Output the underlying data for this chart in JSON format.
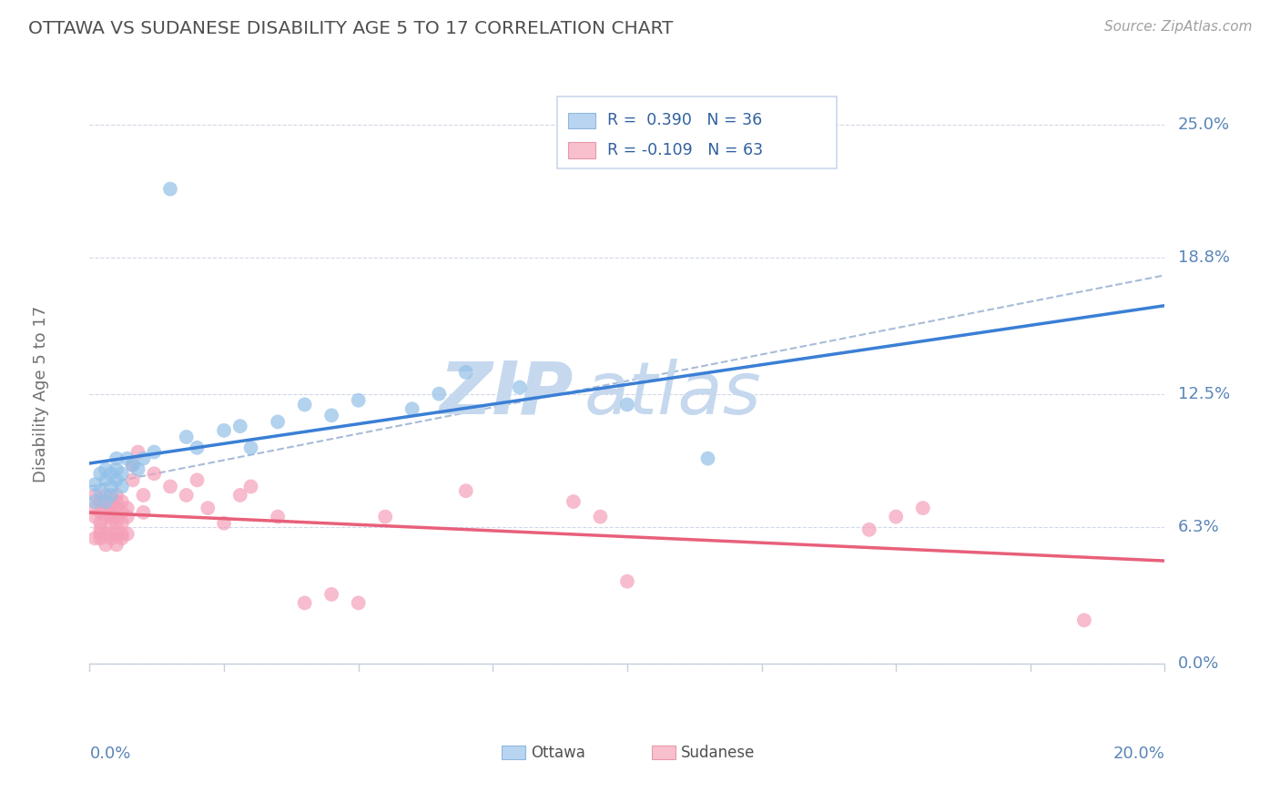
{
  "title": "OTTAWA VS SUDANESE DISABILITY AGE 5 TO 17 CORRELATION CHART",
  "source_text": "Source: ZipAtlas.com",
  "ylabel": "Disability Age 5 to 17",
  "xlim": [
    0.0,
    0.2
  ],
  "ylim": [
    -0.02,
    0.27
  ],
  "plot_ylim": [
    0.0,
    0.25
  ],
  "ytick_values": [
    0.0,
    0.063,
    0.125,
    0.188,
    0.25
  ],
  "ytick_labels": [
    "0.0%",
    "6.3%",
    "12.5%",
    "18.8%",
    "25.0%"
  ],
  "xtick_values": [
    0.0,
    0.2
  ],
  "xtick_labels": [
    "0.0%",
    "20.0%"
  ],
  "ottawa_R": 0.39,
  "ottawa_N": 36,
  "sudanese_R": -0.109,
  "sudanese_N": 63,
  "ottawa_color": "#92c0e8",
  "sudanese_color": "#f4a0b8",
  "ottawa_line_color": "#3a7fd5",
  "sudanese_line_color": "#e8607a",
  "dashed_line_color": "#a8bcd8",
  "grid_color": "#d0d8e8",
  "background_color": "#ffffff",
  "title_color": "#505050",
  "axis_label_color": "#5a85b8",
  "watermark_color": "#dce8f4",
  "legend_border_color": "#c8d8ec",
  "legend_box_color_ottawa": "#b8d4f0",
  "legend_box_color_sudanese": "#f8c0cc",
  "ottawa_x": [
    0.001,
    0.001,
    0.002,
    0.002,
    0.003,
    0.003,
    0.003,
    0.004,
    0.004,
    0.004,
    0.005,
    0.005,
    0.005,
    0.006,
    0.006,
    0.007,
    0.008,
    0.009,
    0.01,
    0.012,
    0.015,
    0.018,
    0.02,
    0.025,
    0.028,
    0.03,
    0.035,
    0.04,
    0.045,
    0.05,
    0.06,
    0.065,
    0.07,
    0.08,
    0.1,
    0.115
  ],
  "ottawa_y": [
    0.075,
    0.083,
    0.08,
    0.088,
    0.085,
    0.09,
    0.075,
    0.082,
    0.088,
    0.078,
    0.085,
    0.09,
    0.095,
    0.088,
    0.082,
    0.095,
    0.092,
    0.09,
    0.095,
    0.098,
    0.22,
    0.105,
    0.1,
    0.108,
    0.11,
    0.1,
    0.112,
    0.12,
    0.115,
    0.122,
    0.118,
    0.125,
    0.135,
    0.128,
    0.12,
    0.095
  ],
  "sudanese_x": [
    0.001,
    0.001,
    0.001,
    0.001,
    0.002,
    0.002,
    0.002,
    0.002,
    0.002,
    0.002,
    0.003,
    0.003,
    0.003,
    0.003,
    0.003,
    0.004,
    0.004,
    0.004,
    0.004,
    0.004,
    0.004,
    0.004,
    0.005,
    0.005,
    0.005,
    0.005,
    0.005,
    0.005,
    0.005,
    0.006,
    0.006,
    0.006,
    0.006,
    0.006,
    0.007,
    0.007,
    0.007,
    0.008,
    0.008,
    0.009,
    0.01,
    0.01,
    0.012,
    0.015,
    0.018,
    0.02,
    0.022,
    0.025,
    0.028,
    0.03,
    0.035,
    0.04,
    0.045,
    0.05,
    0.055,
    0.07,
    0.09,
    0.095,
    0.1,
    0.145,
    0.15,
    0.155,
    0.185
  ],
  "sudanese_y": [
    0.068,
    0.072,
    0.078,
    0.058,
    0.065,
    0.07,
    0.06,
    0.075,
    0.058,
    0.062,
    0.068,
    0.072,
    0.06,
    0.055,
    0.078,
    0.07,
    0.075,
    0.068,
    0.06,
    0.072,
    0.065,
    0.058,
    0.075,
    0.068,
    0.055,
    0.072,
    0.06,
    0.078,
    0.065,
    0.07,
    0.06,
    0.075,
    0.065,
    0.058,
    0.072,
    0.06,
    0.068,
    0.092,
    0.085,
    0.098,
    0.078,
    0.07,
    0.088,
    0.082,
    0.078,
    0.085,
    0.072,
    0.065,
    0.078,
    0.082,
    0.068,
    0.028,
    0.032,
    0.028,
    0.068,
    0.08,
    0.075,
    0.068,
    0.038,
    0.062,
    0.068,
    0.072,
    0.02
  ]
}
